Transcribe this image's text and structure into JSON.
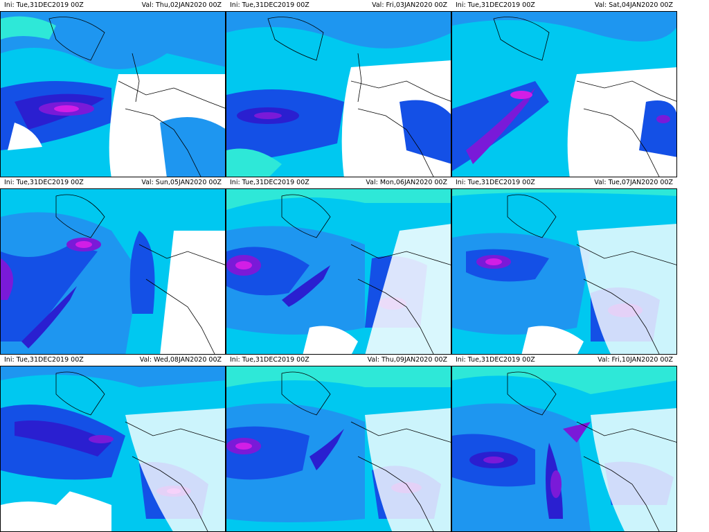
{
  "panels": [
    {
      "ini": "Ini: Tue,31DEC2019  00Z",
      "val": "Val: Thu,02JAN2020  00Z"
    },
    {
      "ini": "Ini: Tue,31DEC2019  00Z",
      "val": "Val: Fri,03JAN2020  00Z"
    },
    {
      "ini": "Ini: Tue,31DEC2019  00Z",
      "val": "Val: Sat,04JAN2020  00Z"
    },
    {
      "ini": "Ini: Tue,31DEC2019  00Z",
      "val": "Val: Sun,05JAN2020  00Z"
    },
    {
      "ini": "Ini: Tue,31DEC2019  00Z",
      "val": "Val: Mon,06JAN2020  00Z"
    },
    {
      "ini": "Ini: Tue,31DEC2019  00Z",
      "val": "Val: Tue,07JAN2020  00Z"
    },
    {
      "ini": "Ini: Tue,31DEC2019  00Z",
      "val": "Val: Wed,08JAN2020  00Z"
    },
    {
      "ini": "Ini: Tue,31DEC2019  00Z",
      "val": "Val: Thu,09JAN2020  00Z"
    },
    {
      "ini": "Ini: Tue,31DEC2019  00Z",
      "val": "Val: Fri,10JAN2020  00Z"
    }
  ],
  "colors": {
    "background": "#ffffff",
    "light_cyan": "#2ee8d8",
    "cyan": "#00c8f0",
    "light_blue": "#1e96f0",
    "blue": "#1450e6",
    "dark_blue": "#2a1fd0",
    "purple": "#7a1ad8",
    "magenta": "#d21ee6",
    "coastline": "#000000"
  }
}
